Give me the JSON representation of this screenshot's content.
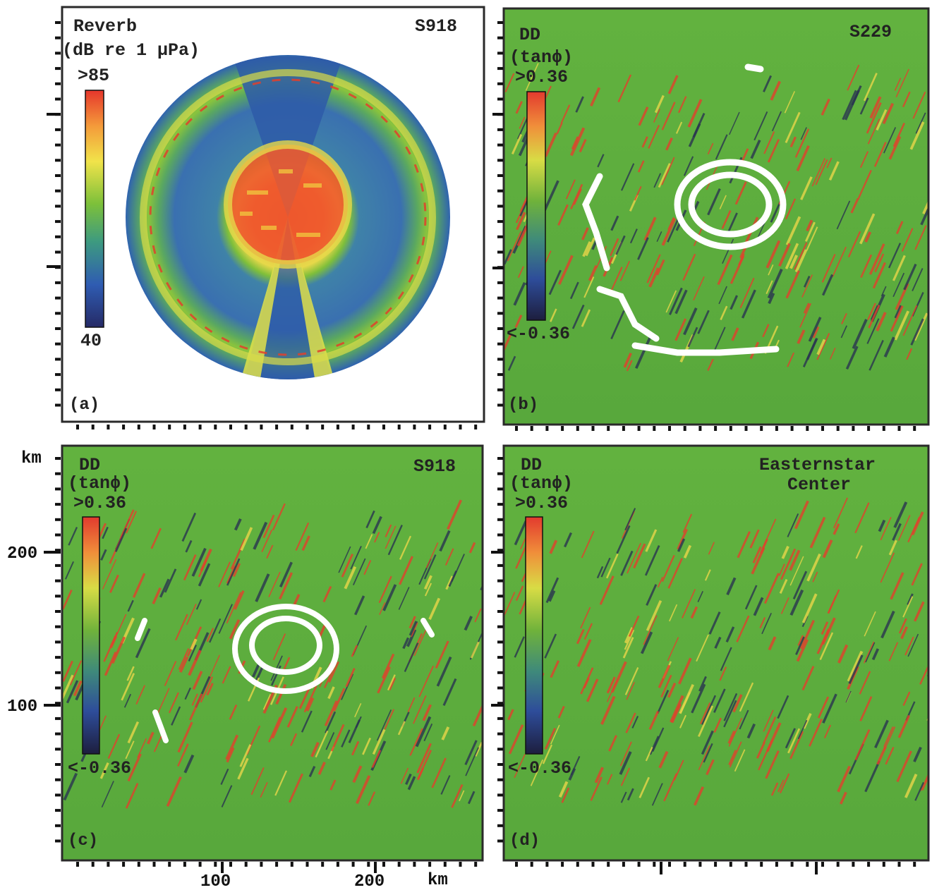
{
  "chart_data": [
    {
      "type": "heatmap",
      "panel": "(a)",
      "title": "Reverb",
      "units": "(dB re 1 μPa)",
      "source": "S918",
      "colorbar": {
        "max_label": ">85",
        "min_label": "40",
        "vmin": 40,
        "vmax": 85,
        "colors": [
          "#2a2c6e",
          "#2f5db0",
          "#3f9a7a",
          "#7fbf3a",
          "#f0e24a",
          "#f39a3a",
          "#e83a2e"
        ]
      },
      "description_values": {
        "center_level": 85,
        "ring_level": 70,
        "background_level": 55
      }
    },
    {
      "type": "heatmap",
      "panel": "(b)",
      "title": "DD",
      "units": "(tanϕ)",
      "source": "S229",
      "colorbar": {
        "max_label": ">0.36",
        "min_label": "<-0.36",
        "vmin": -0.36,
        "vmax": 0.36
      }
    },
    {
      "type": "heatmap",
      "panel": "(c)",
      "title": "DD",
      "units": "(tanϕ)",
      "source": "S918",
      "colorbar": {
        "max_label": ">0.36",
        "min_label": "<-0.36",
        "vmin": -0.36,
        "vmax": 0.36
      },
      "x_axis": {
        "label": "km",
        "ticks": [
          100,
          200
        ],
        "range": [
          0,
          270
        ]
      },
      "y_axis": {
        "label": "km",
        "ticks": [
          100,
          200
        ],
        "range": [
          0,
          270
        ]
      }
    },
    {
      "type": "heatmap",
      "panel": "(d)",
      "title": "DD",
      "units": "(tanϕ)",
      "source": "Easternstar Center",
      "source_lines": [
        "Easternstar",
        "Center"
      ],
      "colorbar": {
        "max_label": ">0.36",
        "min_label": "<-0.36",
        "vmin": -0.36,
        "vmax": 0.36
      }
    }
  ],
  "axis_labels": {
    "y_unit": "km",
    "x_unit": "km",
    "y_ticks": [
      "200",
      "100"
    ],
    "x_ticks": [
      "100",
      "200"
    ]
  },
  "colors": {
    "seafloor_green": "#5fae3e",
    "red_ridge": "#e2402c",
    "dark_ridge": "#2a3550",
    "white_feature": "#ffffff",
    "panel_border": "#2a2a2a"
  }
}
